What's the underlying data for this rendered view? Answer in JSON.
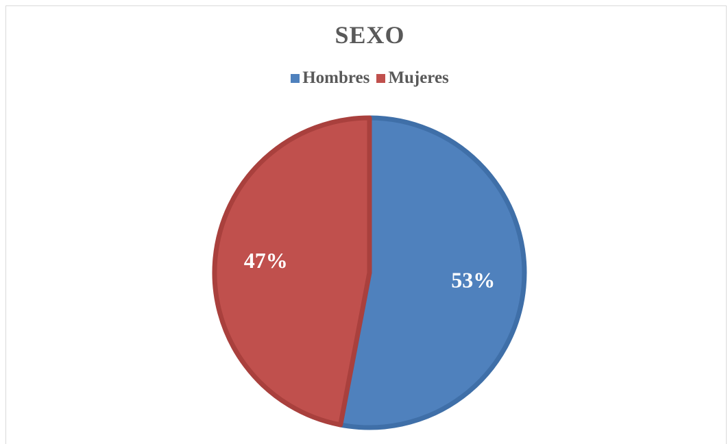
{
  "chart_data": {
    "type": "pie",
    "title": "SEXO",
    "categories": [
      "Hombres",
      "Mujeres"
    ],
    "values": [
      53,
      47
    ],
    "labels": [
      "53%",
      "47%"
    ],
    "colors": [
      "#4F81BD",
      "#C0504D"
    ],
    "border_colors": [
      "#3F6FA8",
      "#A9403D"
    ],
    "legend": "top",
    "start_angle_deg": 0,
    "direction": "clockwise"
  }
}
